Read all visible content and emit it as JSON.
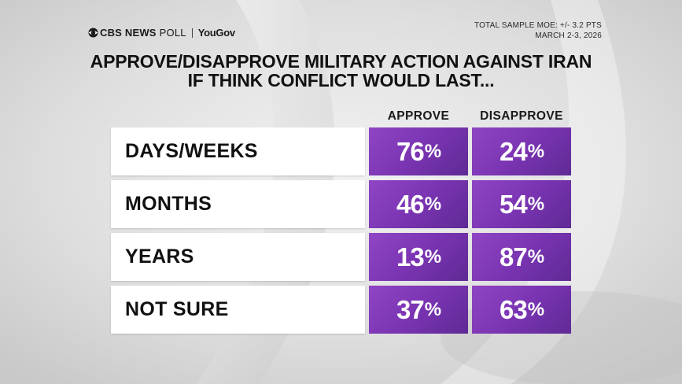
{
  "header": {
    "brand": "CBS NEWS",
    "poll_label": "POLL",
    "partner": "YouGov",
    "moe_line1": "TOTAL SAMPLE MOE: +/- 3.2 PTS",
    "moe_line2": "MARCH 2-3, 2026"
  },
  "colors": {
    "accent_purple": "#7a34b2",
    "label_bg": "#ffffff",
    "page_bg": "#dcdcdc"
  },
  "chart_data": {
    "type": "table",
    "title": "APPROVE/DISAPPROVE MILITARY ACTION AGAINST IRAN IF THINK CONFLICT WOULD LAST...",
    "title_line1": "APPROVE/DISAPPROVE MILITARY ACTION AGAINST IRAN",
    "title_line2": "IF THINK CONFLICT WOULD LAST...",
    "columns": [
      "APPROVE",
      "DISAPPROVE"
    ],
    "categories": [
      "DAYS/WEEKS",
      "MONTHS",
      "YEARS",
      "NOT SURE"
    ],
    "series": [
      {
        "name": "APPROVE",
        "values": [
          76,
          46,
          13,
          37
        ]
      },
      {
        "name": "DISAPPROVE",
        "values": [
          24,
          54,
          87,
          63
        ]
      }
    ],
    "unit": "%"
  }
}
